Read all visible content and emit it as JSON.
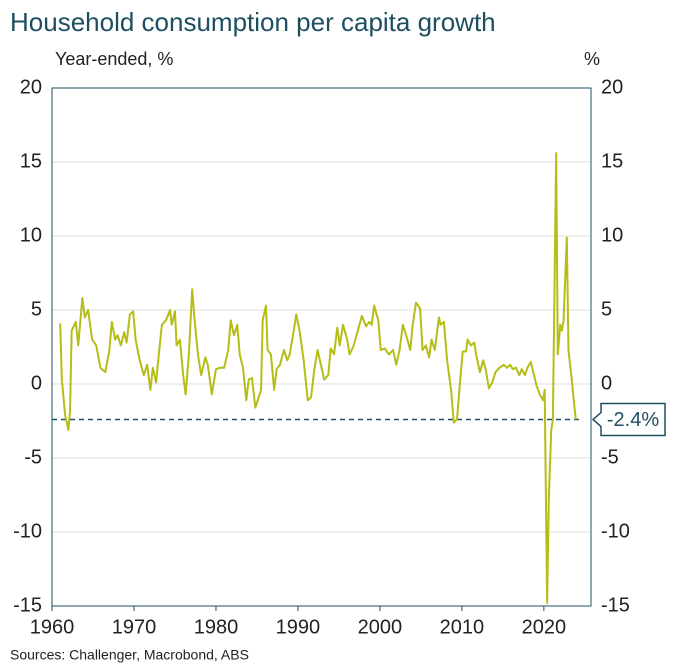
{
  "chart_data": {
    "type": "line",
    "title": "Household consumption per capita growth",
    "y_label": "Year-ended, %",
    "y2_label": "%",
    "source": "Sources: Challenger, Macrobond, ABS",
    "xlim": [
      1960,
      2025.75
    ],
    "xticks": [
      1960,
      1970,
      1980,
      1990,
      2000,
      2010,
      2020
    ],
    "ylim": [
      -15,
      20
    ],
    "yticks": [
      -15,
      -10,
      -5,
      0,
      5,
      10,
      15,
      20
    ],
    "grid": true,
    "reference_line": {
      "value": -2.4,
      "label": "-2.4%"
    },
    "series": [
      {
        "color": "#b5bd16",
        "x": [
          1961.0,
          1961.2,
          1961.6,
          1962.0,
          1962.2,
          1962.4,
          1962.9,
          1963.2,
          1963.7,
          1964.0,
          1964.4,
          1964.9,
          1965.4,
          1965.9,
          1966.5,
          1967.0,
          1967.3,
          1967.7,
          1968.0,
          1968.4,
          1968.8,
          1969.1,
          1969.5,
          1969.9,
          1970.2,
          1970.7,
          1971.2,
          1971.6,
          1972.0,
          1972.3,
          1972.7,
          1972.9,
          1973.4,
          1973.9,
          1974.4,
          1974.6,
          1975.0,
          1975.2,
          1975.6,
          1976.0,
          1976.3,
          1976.7,
          1977.1,
          1977.4,
          1977.8,
          1978.2,
          1978.7,
          1979.0,
          1979.5,
          1980.0,
          1980.5,
          1981.0,
          1981.5,
          1981.8,
          1982.2,
          1982.6,
          1982.9,
          1983.3,
          1983.7,
          1984.0,
          1984.4,
          1984.8,
          1985.1,
          1985.5,
          1985.7,
          1986.1,
          1986.3,
          1986.7,
          1987.1,
          1987.4,
          1987.8,
          1988.3,
          1988.7,
          1989.0,
          1989.4,
          1989.8,
          1990.2,
          1990.7,
          1991.2,
          1991.6,
          1992.0,
          1992.4,
          1992.8,
          1993.2,
          1993.7,
          1994.0,
          1994.4,
          1994.8,
          1995.1,
          1995.5,
          1996.0,
          1996.3,
          1996.8,
          1997.3,
          1997.8,
          1998.3,
          1998.7,
          1999.0,
          1999.3,
          1999.8,
          2000.1,
          2000.6,
          2001.1,
          2001.6,
          2002.0,
          2002.4,
          2002.8,
          2003.2,
          2003.7,
          2004.0,
          2004.4,
          2004.9,
          2005.2,
          2005.6,
          2006.0,
          2006.3,
          2006.7,
          2007.2,
          2007.4,
          2007.8,
          2008.2,
          2008.7,
          2009.0,
          2009.4,
          2009.8,
          2010.1,
          2010.5,
          2010.7,
          2011.1,
          2011.5,
          2011.8,
          2012.2,
          2012.6,
          2012.9,
          2013.3,
          2013.7,
          2014.1,
          2014.6,
          2015.1,
          2015.5,
          2015.9,
          2016.2,
          2016.6,
          2017.0,
          2017.3,
          2017.7,
          2018.0,
          2018.4,
          2018.8,
          2019.1,
          2019.5,
          2019.9,
          2020.1,
          2020.4,
          2020.6,
          2020.9,
          2021.1,
          2021.5,
          2021.7,
          2022.0,
          2022.2,
          2022.4,
          2022.8,
          2023.0,
          2023.4,
          2023.7,
          2023.9
        ],
        "values": [
          4.1,
          0.3,
          -2.1,
          -3.1,
          -1.8,
          3.6,
          4.2,
          2.6,
          5.8,
          4.5,
          5.0,
          3.0,
          2.6,
          1.1,
          0.8,
          2.3,
          4.2,
          3.0,
          3.3,
          2.6,
          3.5,
          2.8,
          4.7,
          4.9,
          3.0,
          1.6,
          0.6,
          1.3,
          -0.4,
          1.1,
          0.1,
          1.3,
          4.0,
          4.3,
          5.0,
          4.0,
          4.9,
          2.6,
          3.0,
          0.6,
          -0.7,
          2.0,
          6.4,
          4.3,
          2.0,
          0.6,
          1.8,
          1.3,
          -0.7,
          1.0,
          1.1,
          1.1,
          2.3,
          4.3,
          3.3,
          4.0,
          2.0,
          1.1,
          -1.1,
          0.3,
          0.4,
          -1.6,
          -1.1,
          -0.4,
          4.3,
          5.3,
          2.3,
          2.0,
          -0.4,
          1.0,
          1.3,
          2.3,
          1.6,
          2.0,
          3.3,
          4.7,
          3.6,
          1.6,
          -1.1,
          -0.9,
          1.0,
          2.3,
          1.3,
          0.3,
          0.6,
          2.4,
          2.0,
          3.8,
          2.6,
          4.0,
          3.0,
          2.0,
          2.6,
          3.6,
          4.6,
          3.9,
          4.2,
          4.0,
          5.3,
          4.3,
          2.3,
          2.4,
          2.0,
          2.3,
          1.3,
          2.3,
          4.0,
          3.3,
          2.3,
          4.0,
          5.5,
          5.1,
          2.3,
          2.6,
          1.8,
          3.0,
          2.3,
          4.5,
          4.0,
          4.2,
          1.6,
          -0.5,
          -2.6,
          -2.4,
          0.3,
          2.2,
          2.2,
          3.0,
          2.6,
          2.8,
          1.8,
          0.8,
          1.6,
          1.0,
          -0.3,
          0.1,
          0.8,
          1.1,
          1.3,
          1.1,
          1.3,
          1.0,
          1.1,
          0.6,
          1.0,
          0.6,
          1.1,
          1.5,
          0.6,
          -0.1,
          -0.7,
          -1.1,
          -0.4,
          -14.8,
          -7.8,
          -3.1,
          -2.4,
          15.6,
          2.0,
          4.0,
          3.6,
          4.3,
          9.9,
          2.3,
          0.3,
          -1.4,
          -2.4
        ]
      }
    ]
  }
}
